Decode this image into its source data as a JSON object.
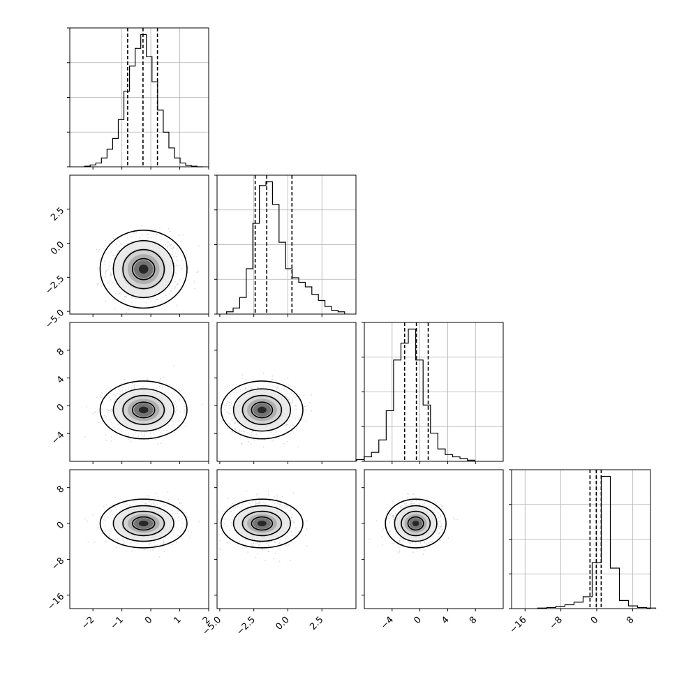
{
  "chart_data": {
    "type": "corner",
    "grid_on_diagonal": true,
    "parameters": [
      {
        "range": [
          -2.8,
          2.0
        ],
        "ticks": [
          -2,
          -1,
          0,
          1,
          2
        ],
        "tick_labels": [
          "−2",
          "−1",
          "0",
          "1",
          "2"
        ],
        "hist_grid": [
          -1,
          0,
          1
        ],
        "quantiles": [
          -0.8,
          -0.27,
          0.23
        ],
        "center": -0.25,
        "sd": 0.55
      },
      {
        "range": [
          -5.2,
          5.0
        ],
        "ticks": [
          -5.0,
          -2.5,
          0.0,
          2.5
        ],
        "tick_labels": [
          "−5.0",
          "−2.5",
          "0.0",
          "2.5"
        ],
        "hist_grid": [
          -2.5,
          0,
          2.5
        ],
        "quantiles": [
          -2.4,
          -1.55,
          0.3
        ],
        "center": -1.9,
        "sd": 1.1
      },
      {
        "range": [
          -8.0,
          12.0
        ],
        "ticks": [
          -4,
          0,
          4,
          8
        ],
        "tick_labels": [
          "−4",
          "0",
          "4",
          "8"
        ],
        "hist_grid": [
          -4,
          0,
          4,
          8
        ],
        "quantiles": [
          -2.2,
          -0.5,
          1.2
        ],
        "center": -0.6,
        "sd": 1.6
      },
      {
        "range": [
          -19.0,
          12.0
        ],
        "ticks": [
          -16,
          -8,
          0,
          8
        ],
        "tick_labels": [
          "−16",
          "−8",
          "0",
          "8"
        ],
        "hist_grid": [
          -16,
          -8,
          0,
          8
        ],
        "quantiles": [
          -1.5,
          -0.1,
          1.0
        ],
        "center": 0.0,
        "sd": 2.2
      }
    ],
    "diagonal_histograms": [
      {
        "counts": [
          1,
          3,
          6,
          14,
          28,
          45,
          75,
          120,
          160,
          188,
          210,
          175,
          135,
          90,
          55,
          30,
          14,
          6,
          2,
          1,
          0
        ]
      },
      {
        "counts": [
          3,
          8,
          22,
          60,
          120,
          170,
          175,
          145,
          95,
          60,
          48,
          42,
          36,
          26,
          18,
          10,
          5,
          3
        ]
      },
      {
        "counts": [
          3,
          8,
          16,
          38,
          90,
          180,
          210,
          235,
          180,
          100,
          50,
          22,
          12,
          8,
          5,
          2
        ]
      },
      {
        "counts": [
          1,
          2,
          4,
          7,
          12,
          22,
          85,
          245,
          75,
          15,
          5,
          2,
          1
        ]
      }
    ]
  }
}
